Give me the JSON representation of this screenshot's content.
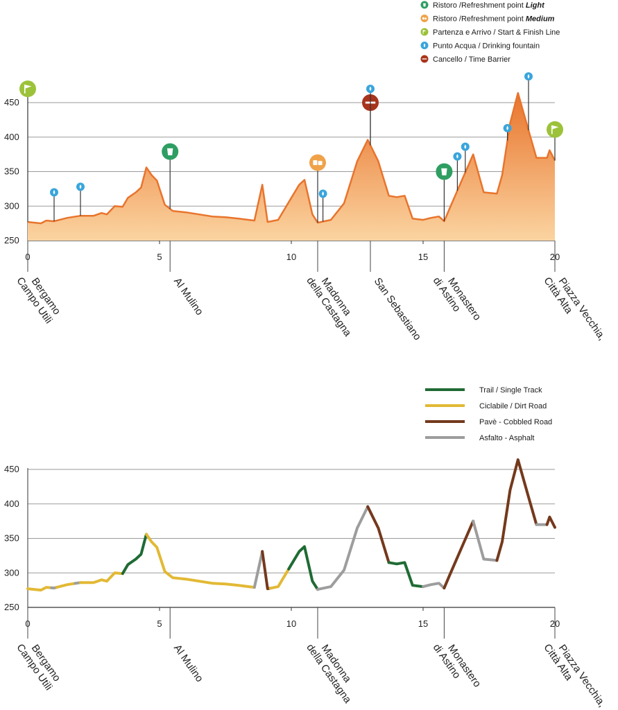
{
  "colors": {
    "grid": "#9a9a9a",
    "profile_stroke": "#e8742c",
    "profile_fill_top": "#e8742c",
    "profile_fill_bottom": "#fbd4a1",
    "refreshment_light": "#2e9e62",
    "refreshment_medium": "#f0a24a",
    "start_finish": "#9cc23a",
    "drinking_fountain": "#3aa5dc",
    "time_barrier": "#a8341c",
    "trail": "#1f6b34",
    "dirt": "#e2b935",
    "cobble": "#74391c",
    "asphalt": "#9d9d9d"
  },
  "legend_top": [
    {
      "kind": "refreshment_light",
      "icon": "cup-icon",
      "text": "Ristoro /Refreshment point ",
      "emph": "Light"
    },
    {
      "kind": "refreshment_medium",
      "icon": "cups-icon",
      "text": "Ristoro /Refreshment point ",
      "emph": "Medium"
    },
    {
      "kind": "start_finish",
      "icon": "flag-icon",
      "text": "Partenza e Arrivo / Start & Finish Line",
      "emph": ""
    },
    {
      "kind": "drinking_fountain",
      "icon": "water-drop-icon",
      "text": "Punto Acqua / Drinking fountain",
      "emph": ""
    },
    {
      "kind": "time_barrier",
      "icon": "barrier-icon",
      "text": "Cancello / Time Barrier",
      "emph": ""
    }
  ],
  "legend_bottom": [
    {
      "kind": "trail",
      "text": "Trail / Single Track"
    },
    {
      "kind": "dirt",
      "text": "Ciclabile / Dirt Road"
    },
    {
      "kind": "cobble",
      "text": "Pavè - Cobbled Road"
    },
    {
      "kind": "asphalt",
      "text": "Asfalto - Asphalt"
    }
  ],
  "chart_data": [
    {
      "type": "area",
      "xlim": [
        0,
        20
      ],
      "ylim": [
        250,
        470
      ],
      "x_ticks": [
        0,
        5,
        10,
        15,
        20
      ],
      "y_ticks": [
        250,
        300,
        350,
        400,
        450
      ],
      "grid": true,
      "profile": [
        [
          0,
          277
        ],
        [
          0.5,
          275
        ],
        [
          0.7,
          279
        ],
        [
          1.0,
          278
        ],
        [
          1.5,
          283
        ],
        [
          2.0,
          286
        ],
        [
          2.5,
          286
        ],
        [
          2.8,
          290
        ],
        [
          3.0,
          288
        ],
        [
          3.3,
          300
        ],
        [
          3.6,
          299
        ],
        [
          3.8,
          312
        ],
        [
          4.1,
          320
        ],
        [
          4.3,
          327
        ],
        [
          4.5,
          356
        ],
        [
          4.7,
          345
        ],
        [
          4.9,
          337
        ],
        [
          5.2,
          302
        ],
        [
          5.5,
          293
        ],
        [
          6.0,
          291
        ],
        [
          6.5,
          288
        ],
        [
          7.0,
          285
        ],
        [
          7.5,
          284
        ],
        [
          8.0,
          282
        ],
        [
          8.6,
          279
        ],
        [
          8.9,
          331
        ],
        [
          9.1,
          277
        ],
        [
          9.5,
          280
        ],
        [
          10.0,
          312
        ],
        [
          10.3,
          331
        ],
        [
          10.5,
          338
        ],
        [
          10.8,
          288
        ],
        [
          11.0,
          276
        ],
        [
          11.5,
          280
        ],
        [
          12.0,
          304
        ],
        [
          12.5,
          365
        ],
        [
          12.9,
          396
        ],
        [
          13.3,
          365
        ],
        [
          13.7,
          315
        ],
        [
          14.0,
          313
        ],
        [
          14.3,
          315
        ],
        [
          14.6,
          282
        ],
        [
          15.0,
          280
        ],
        [
          15.3,
          283
        ],
        [
          15.6,
          285
        ],
        [
          15.8,
          278
        ],
        [
          16.0,
          296
        ],
        [
          16.5,
          340
        ],
        [
          16.9,
          375
        ],
        [
          17.3,
          320
        ],
        [
          17.8,
          318
        ],
        [
          18.0,
          345
        ],
        [
          18.3,
          420
        ],
        [
          18.6,
          464
        ],
        [
          19.0,
          410
        ],
        [
          19.3,
          370
        ],
        [
          19.7,
          370
        ],
        [
          19.8,
          381
        ],
        [
          20.0,
          366
        ]
      ],
      "markers": [
        {
          "x": 0,
          "y": 470,
          "kind": "start_finish"
        },
        {
          "x": 1.0,
          "y": 320,
          "kind": "drinking_fountain"
        },
        {
          "x": 2.0,
          "y": 328,
          "kind": "drinking_fountain"
        },
        {
          "x": 5.4,
          "y": 379,
          "kind": "refreshment_light"
        },
        {
          "x": 11.0,
          "y": 363,
          "kind": "refreshment_medium"
        },
        {
          "x": 11.2,
          "y": 318,
          "kind": "drinking_fountain"
        },
        {
          "x": 13.0,
          "y": 450,
          "kind": "time_barrier"
        },
        {
          "x": 13.0,
          "y": 470,
          "kind": "drinking_fountain"
        },
        {
          "x": 15.8,
          "y": 350,
          "kind": "refreshment_light"
        },
        {
          "x": 16.3,
          "y": 372,
          "kind": "drinking_fountain"
        },
        {
          "x": 16.6,
          "y": 386,
          "kind": "drinking_fountain"
        },
        {
          "x": 18.2,
          "y": 413,
          "kind": "drinking_fountain"
        },
        {
          "x": 19.0,
          "y": 488,
          "kind": "drinking_fountain"
        },
        {
          "x": 20.0,
          "y": 411,
          "kind": "start_finish"
        }
      ],
      "places": [
        {
          "x": 0,
          "name": "Bergamo\nCampo Utili"
        },
        {
          "x": 5.4,
          "name": "Al Mulino"
        },
        {
          "x": 11.0,
          "name": "Madonna\ndella Castagna"
        },
        {
          "x": 13.0,
          "name": "San Sebastiano"
        },
        {
          "x": 15.8,
          "name": "Monastero\ndi Astino"
        },
        {
          "x": 20.0,
          "name": "Piazza Vecchia,\nCittà Alta"
        }
      ]
    },
    {
      "type": "line",
      "xlim": [
        0,
        20
      ],
      "ylim": [
        250,
        470
      ],
      "x_ticks": [
        0,
        5,
        10,
        15,
        20
      ],
      "y_ticks": [
        250,
        300,
        350,
        400,
        450
      ],
      "grid": true,
      "segments": [
        {
          "kind": "dirt",
          "from": 0.0,
          "to": 0.9
        },
        {
          "kind": "asphalt",
          "from": 0.9,
          "to": 1.1
        },
        {
          "kind": "dirt",
          "from": 1.1,
          "to": 1.8
        },
        {
          "kind": "asphalt",
          "from": 1.8,
          "to": 2.0
        },
        {
          "kind": "dirt",
          "from": 2.0,
          "to": 3.6
        },
        {
          "kind": "trail",
          "from": 3.6,
          "to": 4.5
        },
        {
          "kind": "dirt",
          "from": 4.5,
          "to": 8.6
        },
        {
          "kind": "asphalt",
          "from": 8.6,
          "to": 8.9
        },
        {
          "kind": "cobble",
          "from": 8.9,
          "to": 9.2
        },
        {
          "kind": "dirt",
          "from": 9.2,
          "to": 9.9
        },
        {
          "kind": "trail",
          "from": 9.9,
          "to": 11.0
        },
        {
          "kind": "asphalt",
          "from": 11.0,
          "to": 12.9
        },
        {
          "kind": "cobble",
          "from": 12.9,
          "to": 13.7
        },
        {
          "kind": "trail",
          "from": 13.7,
          "to": 15.0
        },
        {
          "kind": "asphalt",
          "from": 15.0,
          "to": 15.8
        },
        {
          "kind": "cobble",
          "from": 15.8,
          "to": 16.9
        },
        {
          "kind": "asphalt",
          "from": 16.9,
          "to": 17.8
        },
        {
          "kind": "cobble",
          "from": 17.8,
          "to": 19.3
        },
        {
          "kind": "asphalt",
          "from": 19.3,
          "to": 19.7
        },
        {
          "kind": "cobble",
          "from": 19.7,
          "to": 20.0
        }
      ],
      "places": [
        {
          "x": 0,
          "name": "Bergamo\nCampo Utili"
        },
        {
          "x": 5.4,
          "name": "Al Mulino"
        },
        {
          "x": 11.0,
          "name": "Madonna\ndella Castagna"
        },
        {
          "x": 15.8,
          "name": "Monastero\ndi Astino"
        },
        {
          "x": 20.0,
          "name": "Piazza Vecchia,\nCittà Alta"
        }
      ]
    }
  ]
}
